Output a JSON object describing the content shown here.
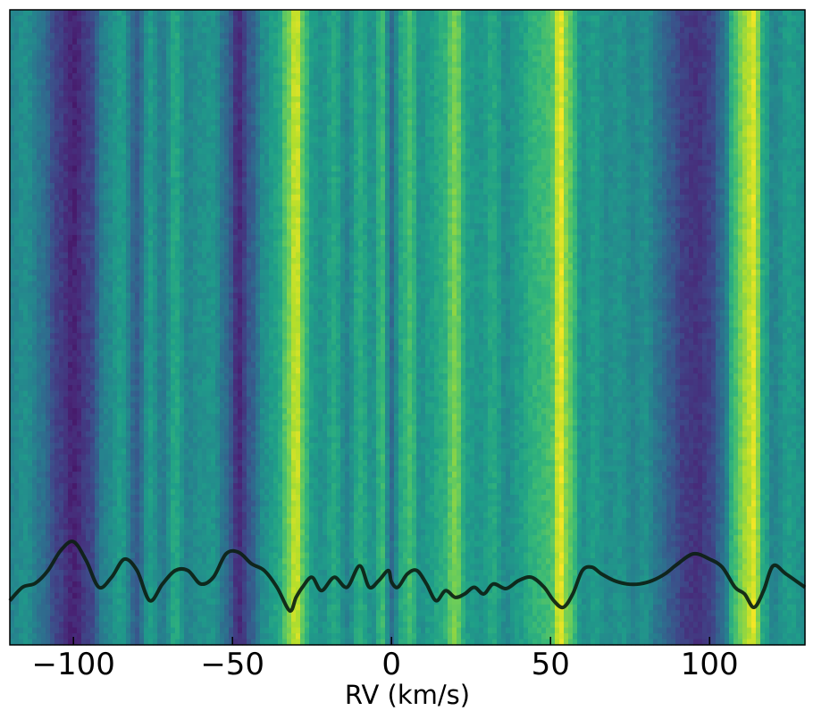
{
  "chart_data": {
    "type": "heatmap",
    "title": "",
    "xlabel": "RV (km/s)",
    "ylabel": "",
    "xlim": [
      -120,
      130
    ],
    "x_ticks": [
      -100,
      -50,
      0,
      50,
      100
    ],
    "x_tick_labels": [
      "−100",
      "−50",
      "0",
      "50",
      "100"
    ],
    "y_ticks": [],
    "grid": false,
    "colormap": "viridis",
    "color_range": [
      0,
      1
    ],
    "stripe_profile": {
      "rv": [
        -120,
        -115,
        -110,
        -105,
        -100,
        -95,
        -90,
        -85,
        -80,
        -76,
        -72,
        -68,
        -64,
        -60,
        -56,
        -52,
        -48,
        -44,
        -40,
        -36,
        -32,
        -30,
        -28,
        -25,
        -22,
        -18,
        -14,
        -10,
        -6,
        -3,
        0,
        3,
        6,
        9,
        12,
        16,
        20,
        24,
        28,
        32,
        36,
        40,
        45,
        50,
        53,
        56,
        60,
        64,
        68,
        72,
        76,
        80,
        84,
        88,
        92,
        96,
        100,
        104,
        108,
        111,
        114,
        117,
        120,
        125,
        130
      ],
      "level": [
        0.45,
        0.5,
        0.38,
        0.2,
        0.1,
        0.2,
        0.45,
        0.55,
        0.3,
        0.55,
        0.42,
        0.6,
        0.45,
        0.5,
        0.52,
        0.35,
        0.12,
        0.3,
        0.5,
        0.58,
        0.8,
        0.95,
        0.75,
        0.55,
        0.5,
        0.6,
        0.45,
        0.62,
        0.5,
        0.68,
        0.35,
        0.6,
        0.7,
        0.5,
        0.55,
        0.62,
        0.8,
        0.55,
        0.52,
        0.6,
        0.48,
        0.55,
        0.65,
        0.7,
        0.97,
        0.75,
        0.5,
        0.55,
        0.48,
        0.52,
        0.45,
        0.5,
        0.38,
        0.28,
        0.18,
        0.15,
        0.2,
        0.35,
        0.7,
        0.85,
        0.95,
        0.6,
        0.45,
        0.55,
        0.5
      ]
    },
    "series": [
      {
        "type": "line",
        "color": "#0d1f14",
        "x": [
          -120,
          -116,
          -112,
          -108,
          -104,
          -100,
          -96,
          -92,
          -88,
          -84,
          -80,
          -76,
          -72,
          -68,
          -64,
          -60,
          -56,
          -52,
          -48,
          -44,
          -40,
          -36,
          -32,
          -30,
          -28,
          -25,
          -22,
          -18,
          -14,
          -10,
          -7,
          -4,
          -1,
          0,
          2,
          5,
          8,
          11,
          14,
          17,
          20,
          23,
          26,
          29,
          32,
          36,
          40,
          44,
          48,
          51,
          54,
          57,
          60,
          63,
          66,
          70,
          74,
          78,
          82,
          86,
          90,
          95,
          100,
          104,
          108,
          111,
          114,
          117,
          120,
          124,
          130
        ],
        "y": [
          0.1,
          0.3,
          0.36,
          0.55,
          0.85,
          0.98,
          0.7,
          0.3,
          0.45,
          0.72,
          0.55,
          0.1,
          0.35,
          0.55,
          0.55,
          0.35,
          0.45,
          0.8,
          0.82,
          0.65,
          0.55,
          0.3,
          -0.05,
          0.15,
          0.3,
          0.45,
          0.25,
          0.45,
          0.3,
          0.62,
          0.3,
          0.4,
          0.55,
          0.38,
          0.3,
          0.5,
          0.55,
          0.35,
          0.1,
          0.25,
          0.15,
          0.2,
          0.3,
          0.2,
          0.35,
          0.28,
          0.4,
          0.45,
          0.3,
          0.1,
          0.0,
          0.2,
          0.55,
          0.6,
          0.5,
          0.4,
          0.35,
          0.35,
          0.4,
          0.5,
          0.65,
          0.8,
          0.72,
          0.6,
          0.3,
          0.2,
          0.0,
          0.25,
          0.62,
          0.5,
          0.3
        ]
      }
    ]
  }
}
